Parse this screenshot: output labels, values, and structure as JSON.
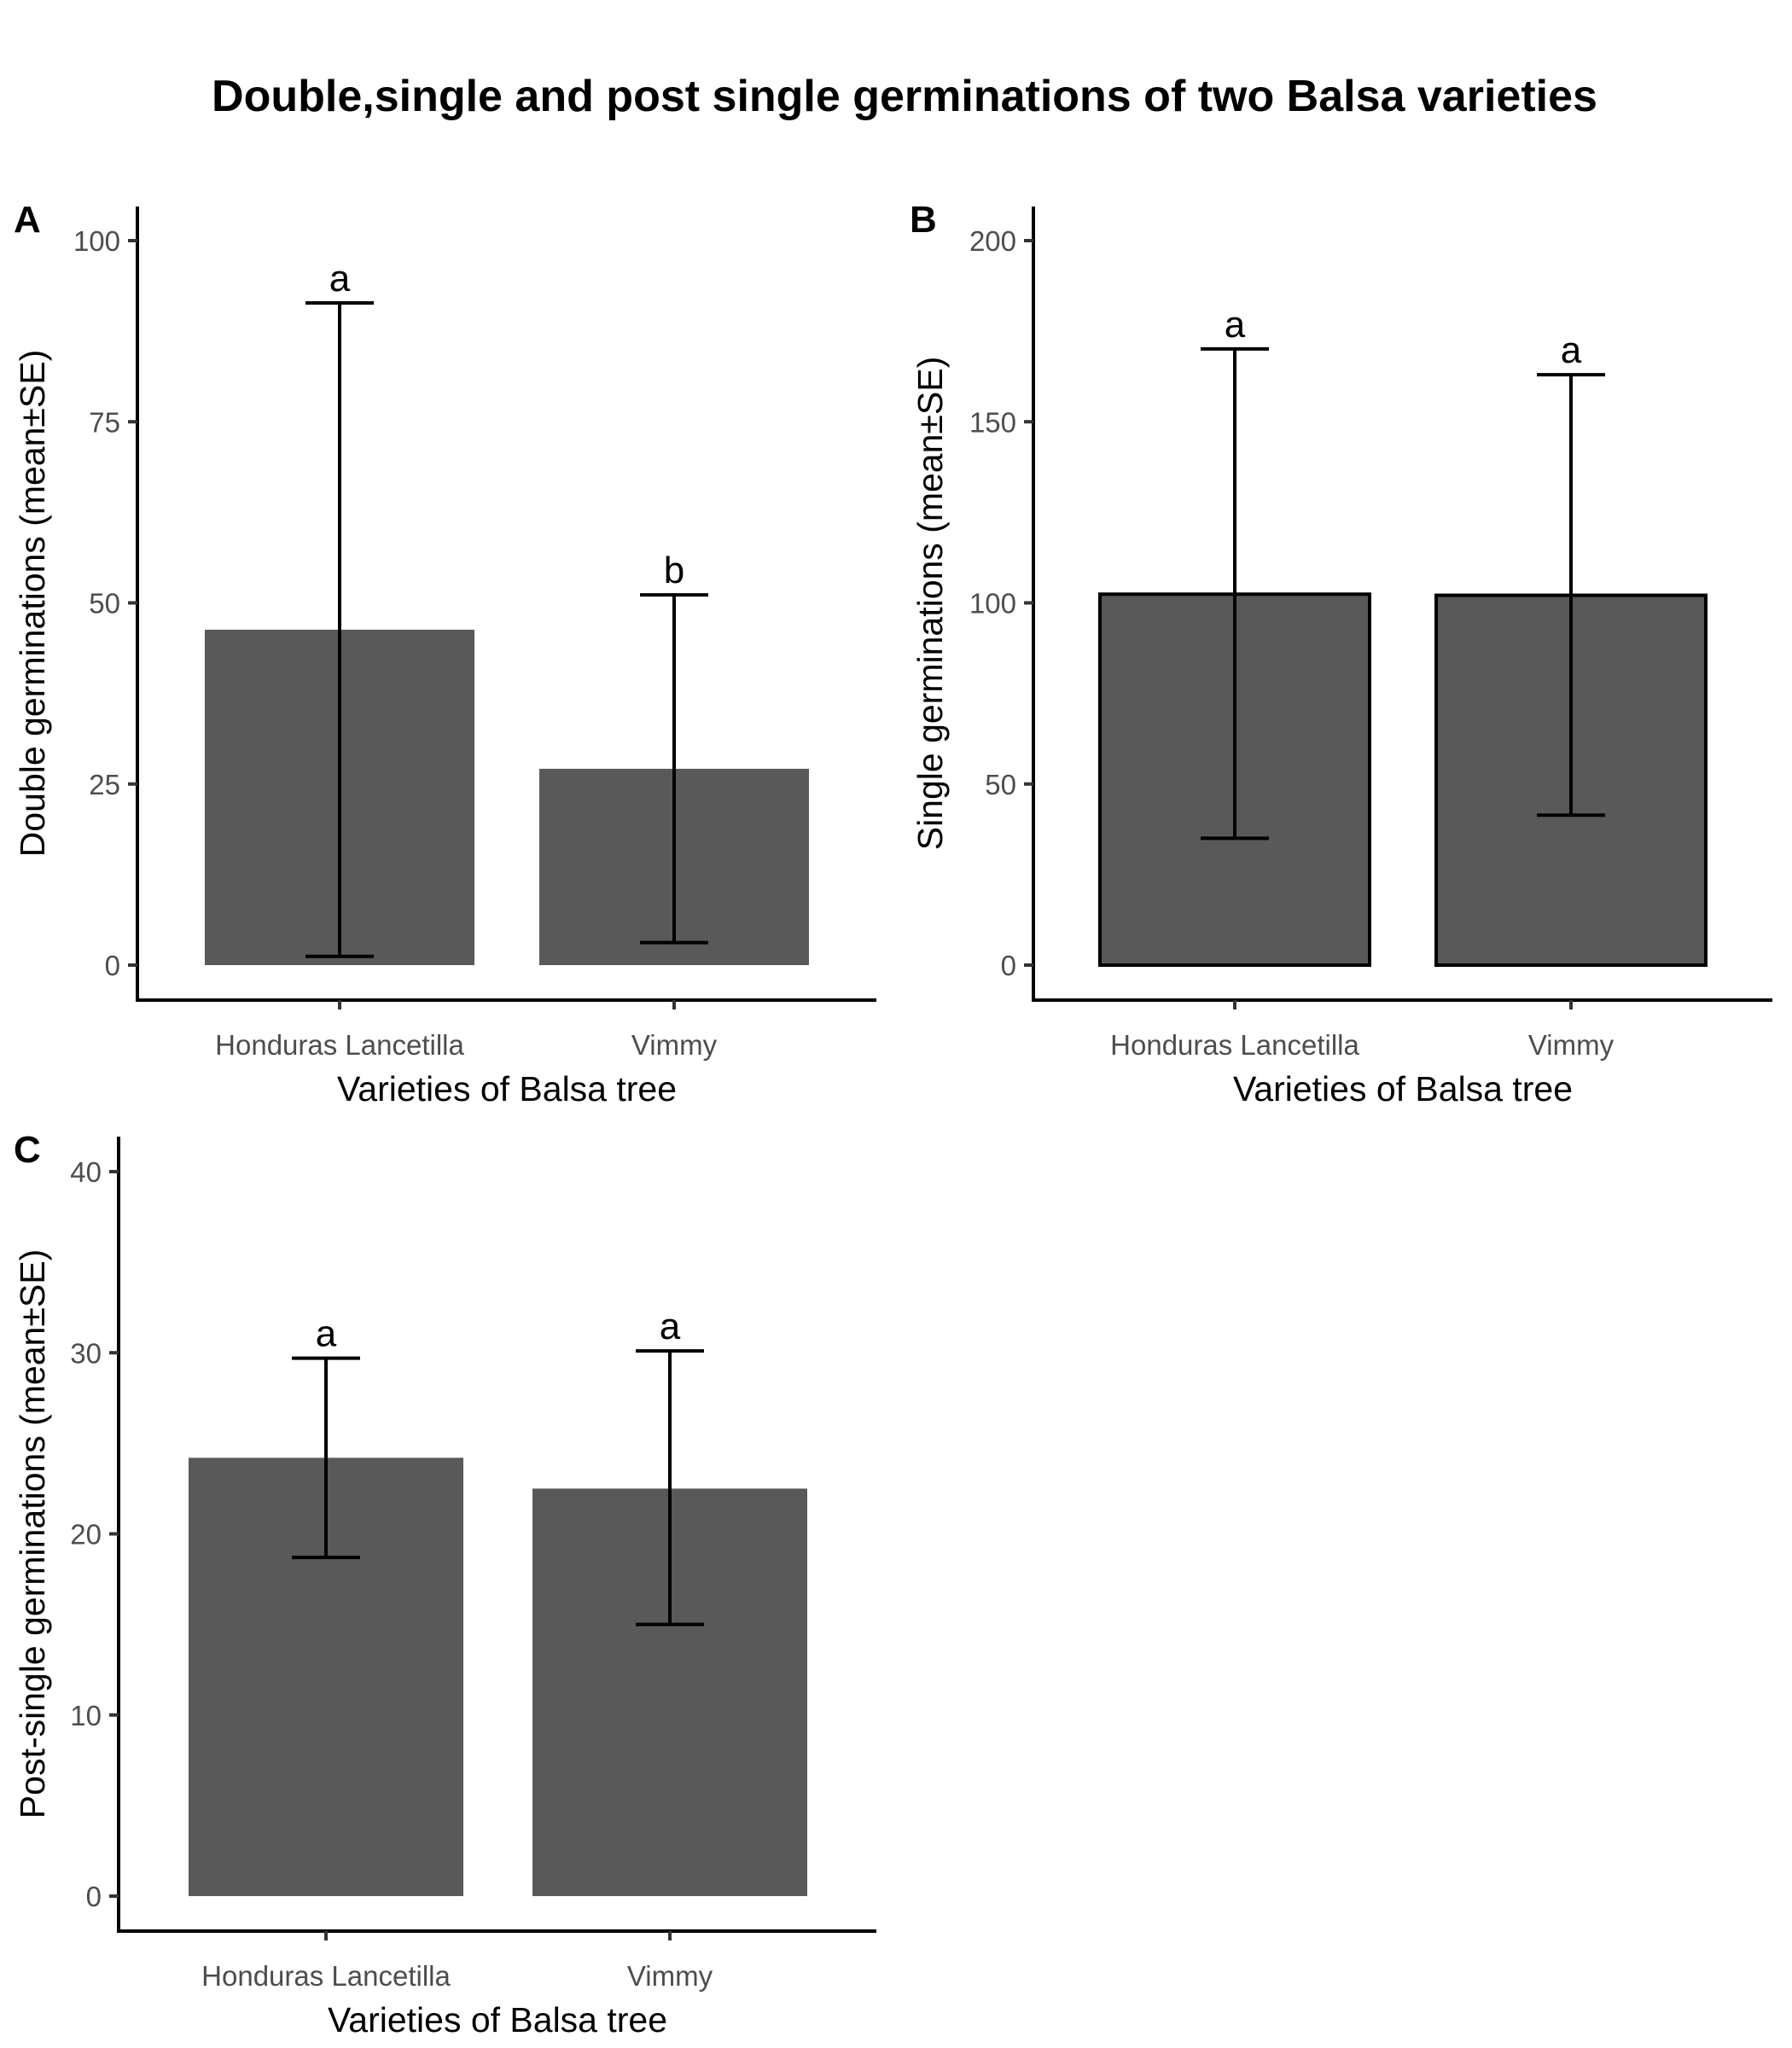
{
  "title": "Double,single and post single germinations of two Balsa varieties",
  "chart_data": [
    {
      "panel": "A",
      "type": "bar",
      "title": "",
      "xlabel": "Varieties of Balsa tree",
      "ylabel": "Double germinations (mean±SE)",
      "categories": [
        "Honduras Lancetilla",
        "Vimmy"
      ],
      "values": [
        46.3,
        27.1
      ],
      "error_upper": [
        91.4,
        51.1
      ],
      "error_lower": [
        1.2,
        3.1
      ],
      "significance_letters": [
        "a",
        "b"
      ],
      "yticks": [
        0,
        25,
        50,
        75,
        100
      ],
      "ylim": [
        0,
        100
      ],
      "bar_color": "#595959",
      "bar_outline": false,
      "grid": false
    },
    {
      "panel": "B",
      "type": "bar",
      "title": "",
      "xlabel": "Varieties of Balsa tree",
      "ylabel": "Single germinations (mean±SE)",
      "categories": [
        "Honduras Lancetilla",
        "Vimmy"
      ],
      "values": [
        102.4,
        102.1
      ],
      "error_upper": [
        170.1,
        163.0
      ],
      "error_lower": [
        35.0,
        41.4
      ],
      "significance_letters": [
        "a",
        "a"
      ],
      "yticks": [
        0,
        50,
        100,
        150,
        200
      ],
      "ylim": [
        0,
        200
      ],
      "bar_color": "#595959",
      "bar_outline": true,
      "grid": false
    },
    {
      "panel": "C",
      "type": "bar",
      "title": "",
      "xlabel": "Varieties of Balsa tree",
      "ylabel": "Post-single germinations (mean±SE)",
      "categories": [
        "Honduras Lancetilla",
        "Vimmy"
      ],
      "values": [
        24.2,
        22.5
      ],
      "error_upper": [
        29.7,
        30.1
      ],
      "error_lower": [
        18.7,
        15.0
      ],
      "significance_letters": [
        "a",
        "a"
      ],
      "yticks": [
        0,
        10,
        20,
        30,
        40
      ],
      "ylim": [
        0,
        40
      ],
      "bar_color": "#595959",
      "bar_outline": false,
      "grid": false
    }
  ]
}
